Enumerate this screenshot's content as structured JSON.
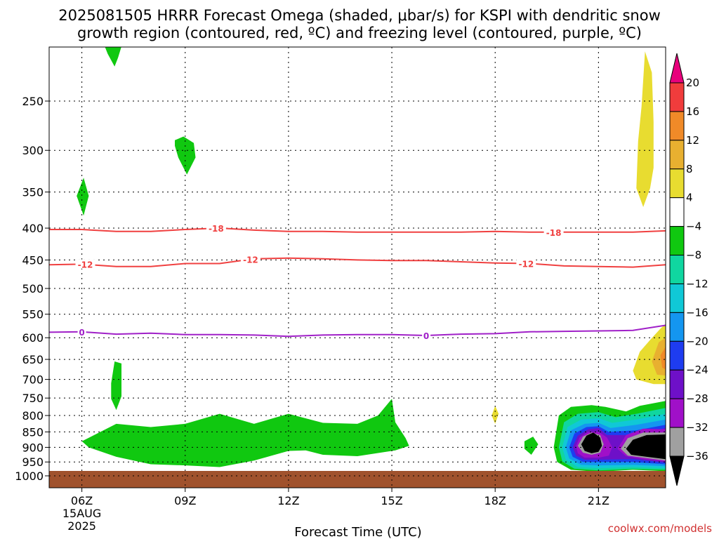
{
  "title_line1": "2025081505 HRRR Forecast Omega (shaded, μbar/s) for KSPI with dendritic snow",
  "title_line2": "growth region (contoured, red, ºC) and freezing level (contoured, purple, ºC)",
  "credit": "coolwx.com/models",
  "chart_data": {
    "type": "heatmap",
    "xlabel": "Forecast Time (UTC)",
    "ylabel": "",
    "x_ticks": [
      {
        "hour": 6,
        "label": "06Z",
        "sub1": "15AUG",
        "sub2": "2025"
      },
      {
        "hour": 9,
        "label": "09Z"
      },
      {
        "hour": 12,
        "label": "12Z"
      },
      {
        "hour": 15,
        "label": "15Z"
      },
      {
        "hour": 18,
        "label": "18Z"
      },
      {
        "hour": 21,
        "label": "21Z"
      }
    ],
    "xlim": [
      5.05,
      22.95
    ],
    "y_ticks": [
      250,
      300,
      350,
      400,
      450,
      500,
      550,
      600,
      650,
      700,
      750,
      800,
      850,
      900,
      950,
      1000
    ],
    "ylim": [
      200,
      1030
    ],
    "y_scale": "log",
    "grid": "dotted",
    "colorbar": {
      "levels": [
        20,
        16,
        12,
        8,
        4,
        -4,
        -8,
        -12,
        -16,
        -20,
        -24,
        -28,
        -32,
        -36
      ],
      "colors": [
        "#e8007c",
        "#f03c3c",
        "#f08a28",
        "#e8b030",
        "#e8dc30",
        "#ffffff",
        "#10c810",
        "#10d6a0",
        "#10c8d6",
        "#1496f0",
        "#1e3cf0",
        "#6e10c8",
        "#a010c8",
        "#a0a0a0",
        "#000000"
      ]
    },
    "contours": [
      {
        "name": "-18",
        "color": "#f04040",
        "level": -18,
        "x": [
          5.05,
          6,
          7,
          8,
          9,
          10,
          11,
          12,
          13,
          14,
          15,
          16,
          17,
          18,
          19,
          20,
          21,
          22,
          22.95
        ],
        "y": [
          402,
          402,
          405,
          405,
          402,
          400,
          403,
          405,
          405,
          406,
          406,
          406,
          406,
          405,
          406,
          406,
          406,
          406,
          404
        ],
        "labels": [
          {
            "x": 9.9,
            "text": "-18"
          },
          {
            "x": 19.7,
            "text": "-18"
          }
        ]
      },
      {
        "name": "-12",
        "color": "#f04040",
        "level": -12,
        "x": [
          5.05,
          6,
          7,
          8,
          9,
          10,
          11,
          12,
          13,
          14,
          15,
          16,
          17,
          18,
          19,
          20,
          21,
          22,
          22.95
        ],
        "y": [
          458,
          457,
          461,
          461,
          456,
          456,
          448,
          447,
          448,
          450,
          451,
          451,
          453,
          455,
          456,
          460,
          461,
          462,
          458
        ],
        "labels": [
          {
            "x": 6.1,
            "text": "-12"
          },
          {
            "x": 10.9,
            "text": "-12"
          },
          {
            "x": 18.9,
            "text": "-12"
          }
        ]
      },
      {
        "name": "0",
        "color": "#a020c8",
        "level": 0,
        "x": [
          5.05,
          6,
          7,
          8,
          9,
          10,
          11,
          12,
          13,
          14,
          15,
          16,
          17,
          18,
          19,
          20,
          21,
          22,
          22.95
        ],
        "y": [
          588,
          587,
          592,
          590,
          593,
          593,
          594,
          597,
          594,
          593,
          593,
          595,
          592,
          591,
          587,
          586,
          585,
          584,
          573
        ],
        "labels": [
          {
            "x": 6.0,
            "text": "0"
          },
          {
            "x": 16.0,
            "text": "0"
          }
        ]
      }
    ],
    "shaded_regions": [
      {
        "level": -4,
        "color": "#10c810",
        "points": [
          [
            6.6,
            200
          ],
          [
            7.2,
            200
          ],
          [
            7.05,
            213
          ],
          [
            6.95,
            220
          ],
          [
            6.75,
            210
          ]
        ]
      },
      {
        "level": -4,
        "color": "#10c810",
        "points": [
          [
            8.7,
            289
          ],
          [
            8.95,
            285
          ],
          [
            9.25,
            292
          ],
          [
            9.3,
            308
          ],
          [
            9.05,
            328
          ],
          [
            8.8,
            308
          ],
          [
            8.7,
            295
          ]
        ]
      },
      {
        "level": -4,
        "color": "#10c810",
        "points": [
          [
            5.85,
            355
          ],
          [
            6.05,
            332
          ],
          [
            6.2,
            355
          ],
          [
            6.05,
            382
          ]
        ]
      },
      {
        "level": -4,
        "color": "#10c810",
        "points": [
          [
            6.85,
            710
          ],
          [
            6.95,
            655
          ],
          [
            7.15,
            660
          ],
          [
            7.15,
            745
          ],
          [
            7.0,
            784
          ],
          [
            6.85,
            752
          ]
        ]
      },
      {
        "level": -4,
        "color": "#10c810",
        "points": [
          [
            6.0,
            880
          ],
          [
            7.0,
            825
          ],
          [
            8.0,
            835
          ],
          [
            9.0,
            825
          ],
          [
            10.0,
            795
          ],
          [
            11.0,
            825
          ],
          [
            12.0,
            795
          ],
          [
            13.0,
            822
          ],
          [
            14.0,
            825
          ],
          [
            14.6,
            800
          ],
          [
            15.0,
            752
          ],
          [
            15.1,
            820
          ],
          [
            15.4,
            870
          ],
          [
            15.5,
            895
          ],
          [
            15.1,
            910
          ],
          [
            14.0,
            930
          ],
          [
            13.0,
            925
          ],
          [
            12.5,
            910
          ],
          [
            12.0,
            912
          ],
          [
            11.0,
            945
          ],
          [
            10.0,
            968
          ],
          [
            9.0,
            962
          ],
          [
            8.0,
            958
          ],
          [
            7.0,
            932
          ],
          [
            6.2,
            900
          ]
        ]
      },
      {
        "level": 4,
        "color": "#e8dc30",
        "points": [
          [
            17.9,
            800
          ],
          [
            18.0,
            772
          ],
          [
            18.1,
            795
          ],
          [
            18.0,
            825
          ]
        ]
      },
      {
        "level": -4,
        "color": "#10c810",
        "points": [
          [
            18.85,
            880
          ],
          [
            19.1,
            865
          ],
          [
            19.25,
            890
          ],
          [
            19.05,
            925
          ],
          [
            18.85,
            905
          ]
        ]
      },
      {
        "level": 4,
        "color": "#e8dc30",
        "points": [
          [
            22.25,
            255
          ],
          [
            22.35,
            208
          ],
          [
            22.55,
            225
          ],
          [
            22.6,
            270
          ],
          [
            22.6,
            320
          ],
          [
            22.5,
            345
          ],
          [
            22.3,
            370
          ],
          [
            22.1,
            345
          ],
          [
            22.15,
            290
          ]
        ]
      },
      {
        "level": 4,
        "color": "#e8dc30",
        "points": [
          [
            22.0,
            678
          ],
          [
            22.2,
            632
          ],
          [
            22.5,
            605
          ],
          [
            22.8,
            580
          ],
          [
            22.95,
            570
          ],
          [
            22.95,
            712
          ],
          [
            22.6,
            712
          ],
          [
            22.1,
            700
          ]
        ]
      },
      {
        "level": 8,
        "color": "#e8b030",
        "points": [
          [
            22.55,
            655
          ],
          [
            22.75,
            610
          ],
          [
            22.95,
            600
          ],
          [
            22.95,
            690
          ],
          [
            22.7,
            688
          ]
        ]
      },
      {
        "level": 12,
        "color": "#f08a28",
        "points": [
          [
            22.8,
            640
          ],
          [
            22.95,
            620
          ],
          [
            22.95,
            675
          ],
          [
            22.85,
            670
          ]
        ]
      },
      {
        "level": -4,
        "color": "#10c810",
        "points": [
          [
            19.7,
            900
          ],
          [
            19.85,
            800
          ],
          [
            20.2,
            775
          ],
          [
            20.8,
            770
          ],
          [
            21.2,
            775
          ],
          [
            21.8,
            788
          ],
          [
            22.2,
            772
          ],
          [
            22.95,
            758
          ],
          [
            22.95,
            983
          ],
          [
            22.0,
            978
          ],
          [
            21.0,
            985
          ],
          [
            20.2,
            978
          ],
          [
            19.8,
            950
          ]
        ]
      },
      {
        "level": -8,
        "color": "#10d6a0",
        "points": [
          [
            19.85,
            900
          ],
          [
            20.0,
            820
          ],
          [
            20.4,
            795
          ],
          [
            21.0,
            790
          ],
          [
            21.5,
            805
          ],
          [
            22.1,
            795
          ],
          [
            22.95,
            778
          ],
          [
            22.95,
            978
          ],
          [
            22.0,
            975
          ],
          [
            21.0,
            980
          ],
          [
            20.3,
            974
          ],
          [
            19.95,
            948
          ]
        ]
      },
      {
        "level": -12,
        "color": "#10c8d6",
        "points": [
          [
            19.95,
            900
          ],
          [
            20.1,
            835
          ],
          [
            20.5,
            812
          ],
          [
            21.0,
            808
          ],
          [
            21.4,
            822
          ],
          [
            22.1,
            812
          ],
          [
            22.95,
            795
          ],
          [
            22.95,
            972
          ],
          [
            22.0,
            968
          ],
          [
            21.0,
            972
          ],
          [
            20.4,
            968
          ],
          [
            20.05,
            942
          ]
        ]
      },
      {
        "level": -16,
        "color": "#1496f0",
        "points": [
          [
            20.05,
            900
          ],
          [
            20.2,
            845
          ],
          [
            20.6,
            825
          ],
          [
            21.0,
            822
          ],
          [
            21.35,
            838
          ],
          [
            22.1,
            828
          ],
          [
            22.95,
            812
          ],
          [
            22.95,
            965
          ],
          [
            22.0,
            960
          ],
          [
            21.0,
            962
          ],
          [
            20.5,
            960
          ],
          [
            20.15,
            938
          ]
        ]
      },
      {
        "level": -20,
        "color": "#1e3cf0",
        "points": [
          [
            20.15,
            900
          ],
          [
            20.3,
            855
          ],
          [
            20.65,
            835
          ],
          [
            21.0,
            832
          ],
          [
            21.3,
            850
          ],
          [
            22.1,
            845
          ],
          [
            22.95,
            828
          ],
          [
            22.95,
            958
          ],
          [
            22.0,
            950
          ],
          [
            21.0,
            950
          ],
          [
            20.55,
            950
          ],
          [
            20.25,
            932
          ]
        ]
      },
      {
        "level": -24,
        "color": "#6e10c8",
        "points": [
          [
            20.25,
            900
          ],
          [
            20.4,
            862
          ],
          [
            20.7,
            842
          ],
          [
            21.0,
            838
          ],
          [
            21.25,
            860
          ],
          [
            22.1,
            860
          ],
          [
            22.95,
            838
          ],
          [
            22.95,
            952
          ],
          [
            22.0,
            940
          ],
          [
            21.0,
            942
          ],
          [
            20.6,
            942
          ],
          [
            20.35,
            928
          ]
        ]
      },
      {
        "level": -28,
        "color": "#a010c8",
        "points": [
          [
            20.35,
            895
          ],
          [
            20.45,
            868
          ],
          [
            20.7,
            850
          ],
          [
            21.0,
            850
          ],
          [
            21.25,
            868
          ],
          [
            21.4,
            900
          ],
          [
            21.3,
            928
          ],
          [
            21.0,
            935
          ],
          [
            20.6,
            935
          ],
          [
            20.4,
            920
          ]
        ]
      },
      {
        "level": -28,
        "color": "#a010c8",
        "points": [
          [
            21.55,
            905
          ],
          [
            21.8,
            860
          ],
          [
            22.3,
            840
          ],
          [
            22.95,
            842
          ],
          [
            22.95,
            948
          ],
          [
            22.3,
            940
          ],
          [
            21.8,
            930
          ]
        ]
      },
      {
        "level": -32,
        "color": "#a0a0a0",
        "points": [
          [
            20.4,
            895
          ],
          [
            20.55,
            865
          ],
          [
            20.8,
            852
          ],
          [
            21.05,
            860
          ],
          [
            21.15,
            890
          ],
          [
            21.05,
            918
          ],
          [
            20.8,
            925
          ],
          [
            20.55,
            918
          ]
        ]
      },
      {
        "level": -32,
        "color": "#a0a0a0",
        "points": [
          [
            21.65,
            905
          ],
          [
            21.85,
            870
          ],
          [
            22.3,
            852
          ],
          [
            22.95,
            852
          ],
          [
            22.95,
            945
          ],
          [
            22.3,
            935
          ],
          [
            21.85,
            928
          ]
        ]
      },
      {
        "level": -36,
        "color": "#000000",
        "points": [
          [
            20.5,
            890
          ],
          [
            20.65,
            862
          ],
          [
            20.85,
            852
          ],
          [
            21.05,
            868
          ],
          [
            21.1,
            895
          ],
          [
            21.0,
            915
          ],
          [
            20.8,
            920
          ],
          [
            20.6,
            912
          ]
        ]
      },
      {
        "level": -36,
        "color": "#000000",
        "points": [
          [
            21.8,
            905
          ],
          [
            22.0,
            875
          ],
          [
            22.4,
            860
          ],
          [
            22.95,
            858
          ],
          [
            22.95,
            940
          ],
          [
            22.4,
            932
          ],
          [
            21.95,
            925
          ]
        ]
      }
    ],
    "ground_above_pressure": 982
  }
}
